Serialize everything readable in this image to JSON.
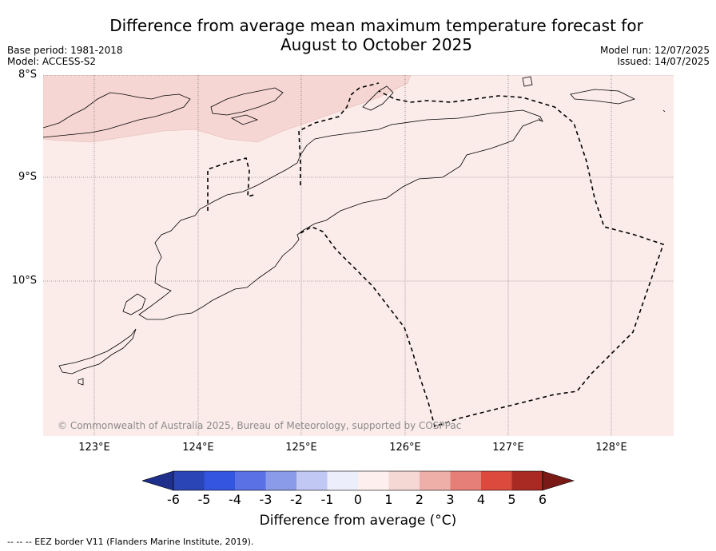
{
  "title": {
    "line1": "Difference from average mean maximum temperature forecast for",
    "line2": "August to October 2025"
  },
  "meta_left": {
    "base_period": "Base period: 1981-2018",
    "model": "Model: ACCESS-S2"
  },
  "meta_right": {
    "model_run": "Model run: 12/07/2025",
    "issued": "Issued: 14/07/2025"
  },
  "map": {
    "lat_labels": [
      "8°S",
      "9°S",
      "10°S"
    ],
    "lon_labels": [
      "123°E",
      "124°E",
      "125°E",
      "126°E",
      "127°E",
      "128°E"
    ],
    "credit": "© Commonwealth of Australia 2025, Bureau of Meteorology, supported by COSPPac",
    "fill_colors": {
      "0-1": "#fbecea",
      "1-2": "#f5d6d3"
    }
  },
  "colorbar": {
    "ticks": [
      "-6",
      "-5",
      "-4",
      "-3",
      "-2",
      "-1",
      "0",
      "1",
      "2",
      "3",
      "4",
      "5",
      "6"
    ],
    "colors": [
      "#1f2f8c",
      "#2a45b6",
      "#3355e0",
      "#5a71e6",
      "#8a9be9",
      "#c1c8f3",
      "#eceefb",
      "#fcefed",
      "#f5d8d3",
      "#efafa9",
      "#e67f77",
      "#db4a3d",
      "#a82a22",
      "#7a1a17"
    ],
    "label": "Difference from average (°C)"
  },
  "footer": "--  --  -- EEZ border V11 (Flanders Marine Institute, 2019)."
}
